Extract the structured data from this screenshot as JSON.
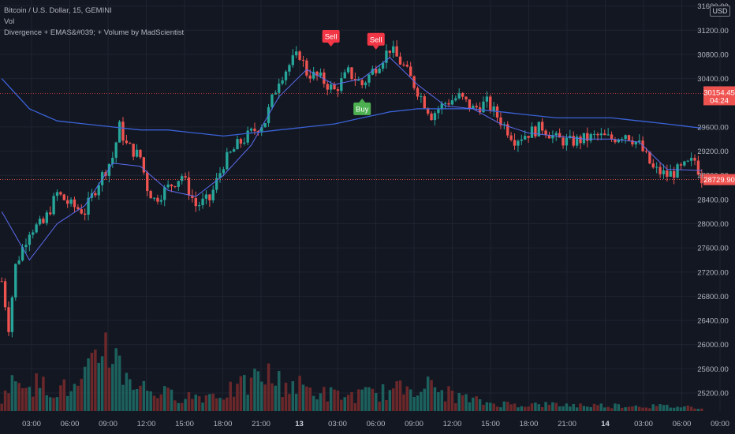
{
  "legend": {
    "symbol_line": "Bitcoin / U.S. Dollar, 15, GEMINI",
    "volume_line": "Vol",
    "indicator_line": "Divergence + EMAS&#039; + Volume by MadScientist"
  },
  "currency_label": "USD",
  "colors": {
    "background": "#131722",
    "up": "#26a69a",
    "down": "#ef5350",
    "ema_fast": "#5b6cf0",
    "ema_slow": "#3a62d6",
    "grid": "#1f2330",
    "axis_text": "#b2b5be",
    "buy": "#4caf50",
    "sell": "#f23645"
  },
  "chart_data": {
    "type": "candlestick",
    "ylim": [
      24900,
      31700
    ],
    "y_ticks": [
      31600,
      31200,
      30800,
      30400,
      29600,
      29200,
      28800,
      28400,
      28000,
      27600,
      27200,
      26800,
      26400,
      26000,
      25600,
      25200
    ],
    "y_tick_labels": [
      "31600.00",
      "31200.00",
      "30800.00",
      "30400.00",
      "29600.00",
      "29200.00",
      "28800.00",
      "28400.00",
      "28000.00",
      "27600.00",
      "27200.00",
      "26800.00",
      "26400.00",
      "26000.00",
      "25600.00",
      "25200.00"
    ],
    "x_ticks": [
      "03:00",
      "06:00",
      "09:00",
      "12:00",
      "15:00",
      "18:00",
      "21:00",
      "13",
      "03:00",
      "06:00",
      "09:00",
      "12:00",
      "15:00",
      "18:00",
      "21:00",
      "14",
      "03:00",
      "06:00",
      "09:00"
    ],
    "bold_x_ticks": [
      "13",
      "14"
    ],
    "close_path": [
      [
        0,
        27050
      ],
      [
        2,
        26300
      ],
      [
        4,
        27300
      ],
      [
        8,
        27900
      ],
      [
        12,
        28000
      ],
      [
        16,
        28500
      ],
      [
        20,
        28300
      ],
      [
        24,
        28200
      ],
      [
        28,
        28700
      ],
      [
        32,
        29100
      ],
      [
        34,
        29600
      ],
      [
        36,
        29300
      ],
      [
        40,
        29100
      ],
      [
        42,
        28600
      ],
      [
        44,
        28400
      ],
      [
        48,
        28600
      ],
      [
        52,
        28800
      ],
      [
        56,
        28300
      ],
      [
        60,
        28400
      ],
      [
        64,
        29000
      ],
      [
        68,
        29300
      ],
      [
        72,
        29500
      ],
      [
        76,
        29700
      ],
      [
        80,
        30400
      ],
      [
        84,
        30700
      ],
      [
        86,
        30800
      ],
      [
        88,
        30500
      ],
      [
        92,
        30400
      ],
      [
        96,
        30200
      ],
      [
        100,
        30500
      ],
      [
        104,
        30300
      ],
      [
        108,
        30600
      ],
      [
        112,
        30900
      ],
      [
        116,
        30600
      ],
      [
        120,
        30200
      ],
      [
        124,
        29800
      ],
      [
        128,
        30000
      ],
      [
        132,
        30100
      ],
      [
        136,
        29900
      ],
      [
        140,
        30000
      ],
      [
        144,
        29700
      ],
      [
        148,
        29400
      ],
      [
        152,
        29500
      ],
      [
        156,
        29600
      ],
      [
        160,
        29400
      ],
      [
        164,
        29350
      ],
      [
        168,
        29400
      ],
      [
        172,
        29450
      ],
      [
        176,
        29400
      ],
      [
        180,
        29500
      ],
      [
        184,
        29300
      ],
      [
        188,
        28900
      ],
      [
        192,
        28800
      ],
      [
        196,
        28900
      ],
      [
        200,
        29050
      ],
      [
        202,
        28750
      ]
    ],
    "ema_fast": [
      [
        0,
        28200
      ],
      [
        8,
        27400
      ],
      [
        16,
        28000
      ],
      [
        24,
        28300
      ],
      [
        32,
        29000
      ],
      [
        40,
        28950
      ],
      [
        48,
        28550
      ],
      [
        56,
        28450
      ],
      [
        64,
        28800
      ],
      [
        72,
        29300
      ],
      [
        80,
        30100
      ],
      [
        88,
        30550
      ],
      [
        96,
        30300
      ],
      [
        104,
        30400
      ],
      [
        112,
        30750
      ],
      [
        120,
        30300
      ],
      [
        128,
        29950
      ],
      [
        136,
        29900
      ],
      [
        144,
        29650
      ],
      [
        152,
        29500
      ],
      [
        160,
        29450
      ],
      [
        168,
        29400
      ],
      [
        176,
        29400
      ],
      [
        184,
        29350
      ],
      [
        192,
        28900
      ],
      [
        202,
        28880
      ]
    ],
    "ema_slow": [
      [
        0,
        30400
      ],
      [
        8,
        29900
      ],
      [
        16,
        29700
      ],
      [
        24,
        29650
      ],
      [
        32,
        29600
      ],
      [
        40,
        29550
      ],
      [
        48,
        29550
      ],
      [
        56,
        29500
      ],
      [
        64,
        29450
      ],
      [
        72,
        29500
      ],
      [
        80,
        29550
      ],
      [
        88,
        29600
      ],
      [
        96,
        29650
      ],
      [
        104,
        29750
      ],
      [
        112,
        29850
      ],
      [
        120,
        29900
      ],
      [
        128,
        29900
      ],
      [
        136,
        29900
      ],
      [
        144,
        29850
      ],
      [
        152,
        29800
      ],
      [
        160,
        29750
      ],
      [
        168,
        29750
      ],
      [
        176,
        29750
      ],
      [
        184,
        29700
      ],
      [
        192,
        29650
      ],
      [
        202,
        29580
      ]
    ],
    "volume_profile": [
      [
        0,
        0.18
      ],
      [
        6,
        0.45
      ],
      [
        10,
        0.32
      ],
      [
        16,
        0.28
      ],
      [
        22,
        0.26
      ],
      [
        26,
        0.5
      ],
      [
        30,
        0.9
      ],
      [
        34,
        0.55
      ],
      [
        40,
        0.3
      ],
      [
        48,
        0.2
      ],
      [
        56,
        0.18
      ],
      [
        64,
        0.22
      ],
      [
        70,
        0.3
      ],
      [
        76,
        0.45
      ],
      [
        80,
        0.35
      ],
      [
        86,
        0.3
      ],
      [
        92,
        0.22
      ],
      [
        100,
        0.18
      ],
      [
        108,
        0.22
      ],
      [
        114,
        0.25
      ],
      [
        120,
        0.35
      ],
      [
        126,
        0.25
      ],
      [
        134,
        0.15
      ],
      [
        140,
        0.1
      ],
      [
        150,
        0.08
      ],
      [
        160,
        0.08
      ],
      [
        170,
        0.07
      ],
      [
        180,
        0.07
      ],
      [
        190,
        0.06
      ],
      [
        202,
        0.05
      ]
    ],
    "last_price": {
      "value": 28729.9,
      "label": "28729.90"
    },
    "reference_price": {
      "value": 30154.45,
      "label": "30154.45",
      "countdown": "04:24"
    },
    "signals": [
      {
        "label": "Sell",
        "bar": 95,
        "price": 31100,
        "side": "sell"
      },
      {
        "label": "Sell",
        "bar": 108,
        "price": 31050,
        "side": "sell"
      },
      {
        "label": "Buy",
        "bar": 104,
        "price": 29900,
        "side": "buy"
      }
    ]
  }
}
